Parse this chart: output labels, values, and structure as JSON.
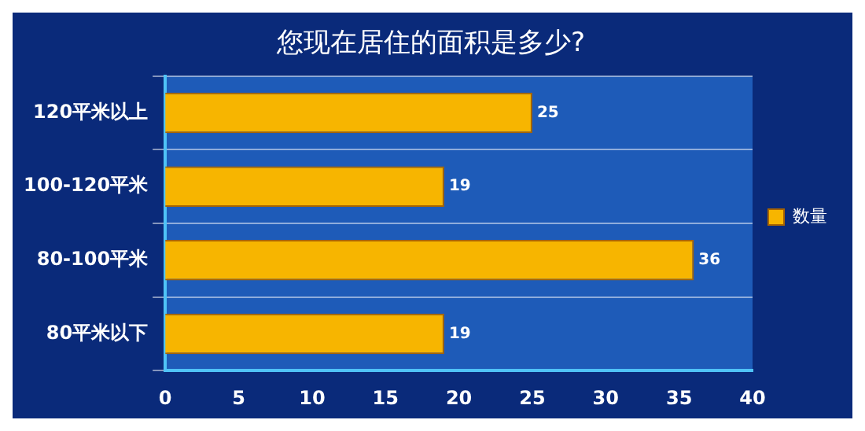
{
  "chart_data": {
    "type": "bar",
    "orientation": "horizontal",
    "title": "您现在居住的面积是多少?",
    "categories": [
      "120平米以上",
      "100-120平米",
      "80-100平米",
      "80平米以下"
    ],
    "series": [
      {
        "name": "数量",
        "color": "#f7b500",
        "values": [
          25,
          19,
          36,
          19
        ]
      }
    ],
    "xlim": [
      0,
      40
    ],
    "xticks": [
      0,
      5,
      10,
      15,
      20,
      25,
      30,
      35,
      40
    ],
    "grid": "y",
    "legend": "right",
    "data_labels": true
  }
}
